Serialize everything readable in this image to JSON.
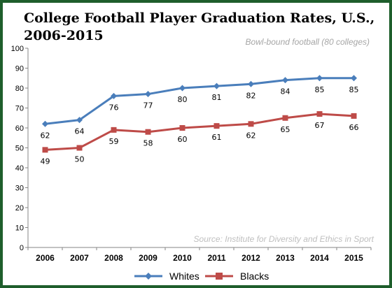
{
  "chart_data": {
    "type": "line",
    "title_line1": "College Football Player Graduation Rates, U.S.,",
    "title_line2": "2006-2015",
    "subtitle": "Bowl-bound football (80 colleges)",
    "source": "Source: Institute for Diversity and Ethics in Sport",
    "categories": [
      "2006",
      "2007",
      "2008",
      "2009",
      "2010",
      "2011",
      "2012",
      "2013",
      "2014",
      "2015"
    ],
    "ylim": [
      0,
      100
    ],
    "yticks": [
      0,
      10,
      20,
      30,
      40,
      50,
      60,
      70,
      80,
      90,
      100
    ],
    "grid": false,
    "legend_position": "bottom",
    "series": [
      {
        "name": "Whites",
        "color": "#4a7ebb",
        "marker": "diamond",
        "values": [
          62,
          64,
          76,
          77,
          80,
          81,
          82,
          84,
          85,
          85
        ],
        "labels": [
          "62",
          "64",
          "76",
          "77",
          "80",
          "81",
          "82",
          "84",
          "85",
          "85"
        ]
      },
      {
        "name": "Blacks",
        "color": "#be4b48",
        "marker": "square",
        "values": [
          49,
          50,
          59,
          58,
          60,
          61,
          62,
          65,
          67,
          66
        ],
        "labels": [
          "49",
          "50",
          "59",
          "58",
          "60",
          "61",
          "62",
          "65",
          "67",
          "66"
        ]
      }
    ]
  }
}
